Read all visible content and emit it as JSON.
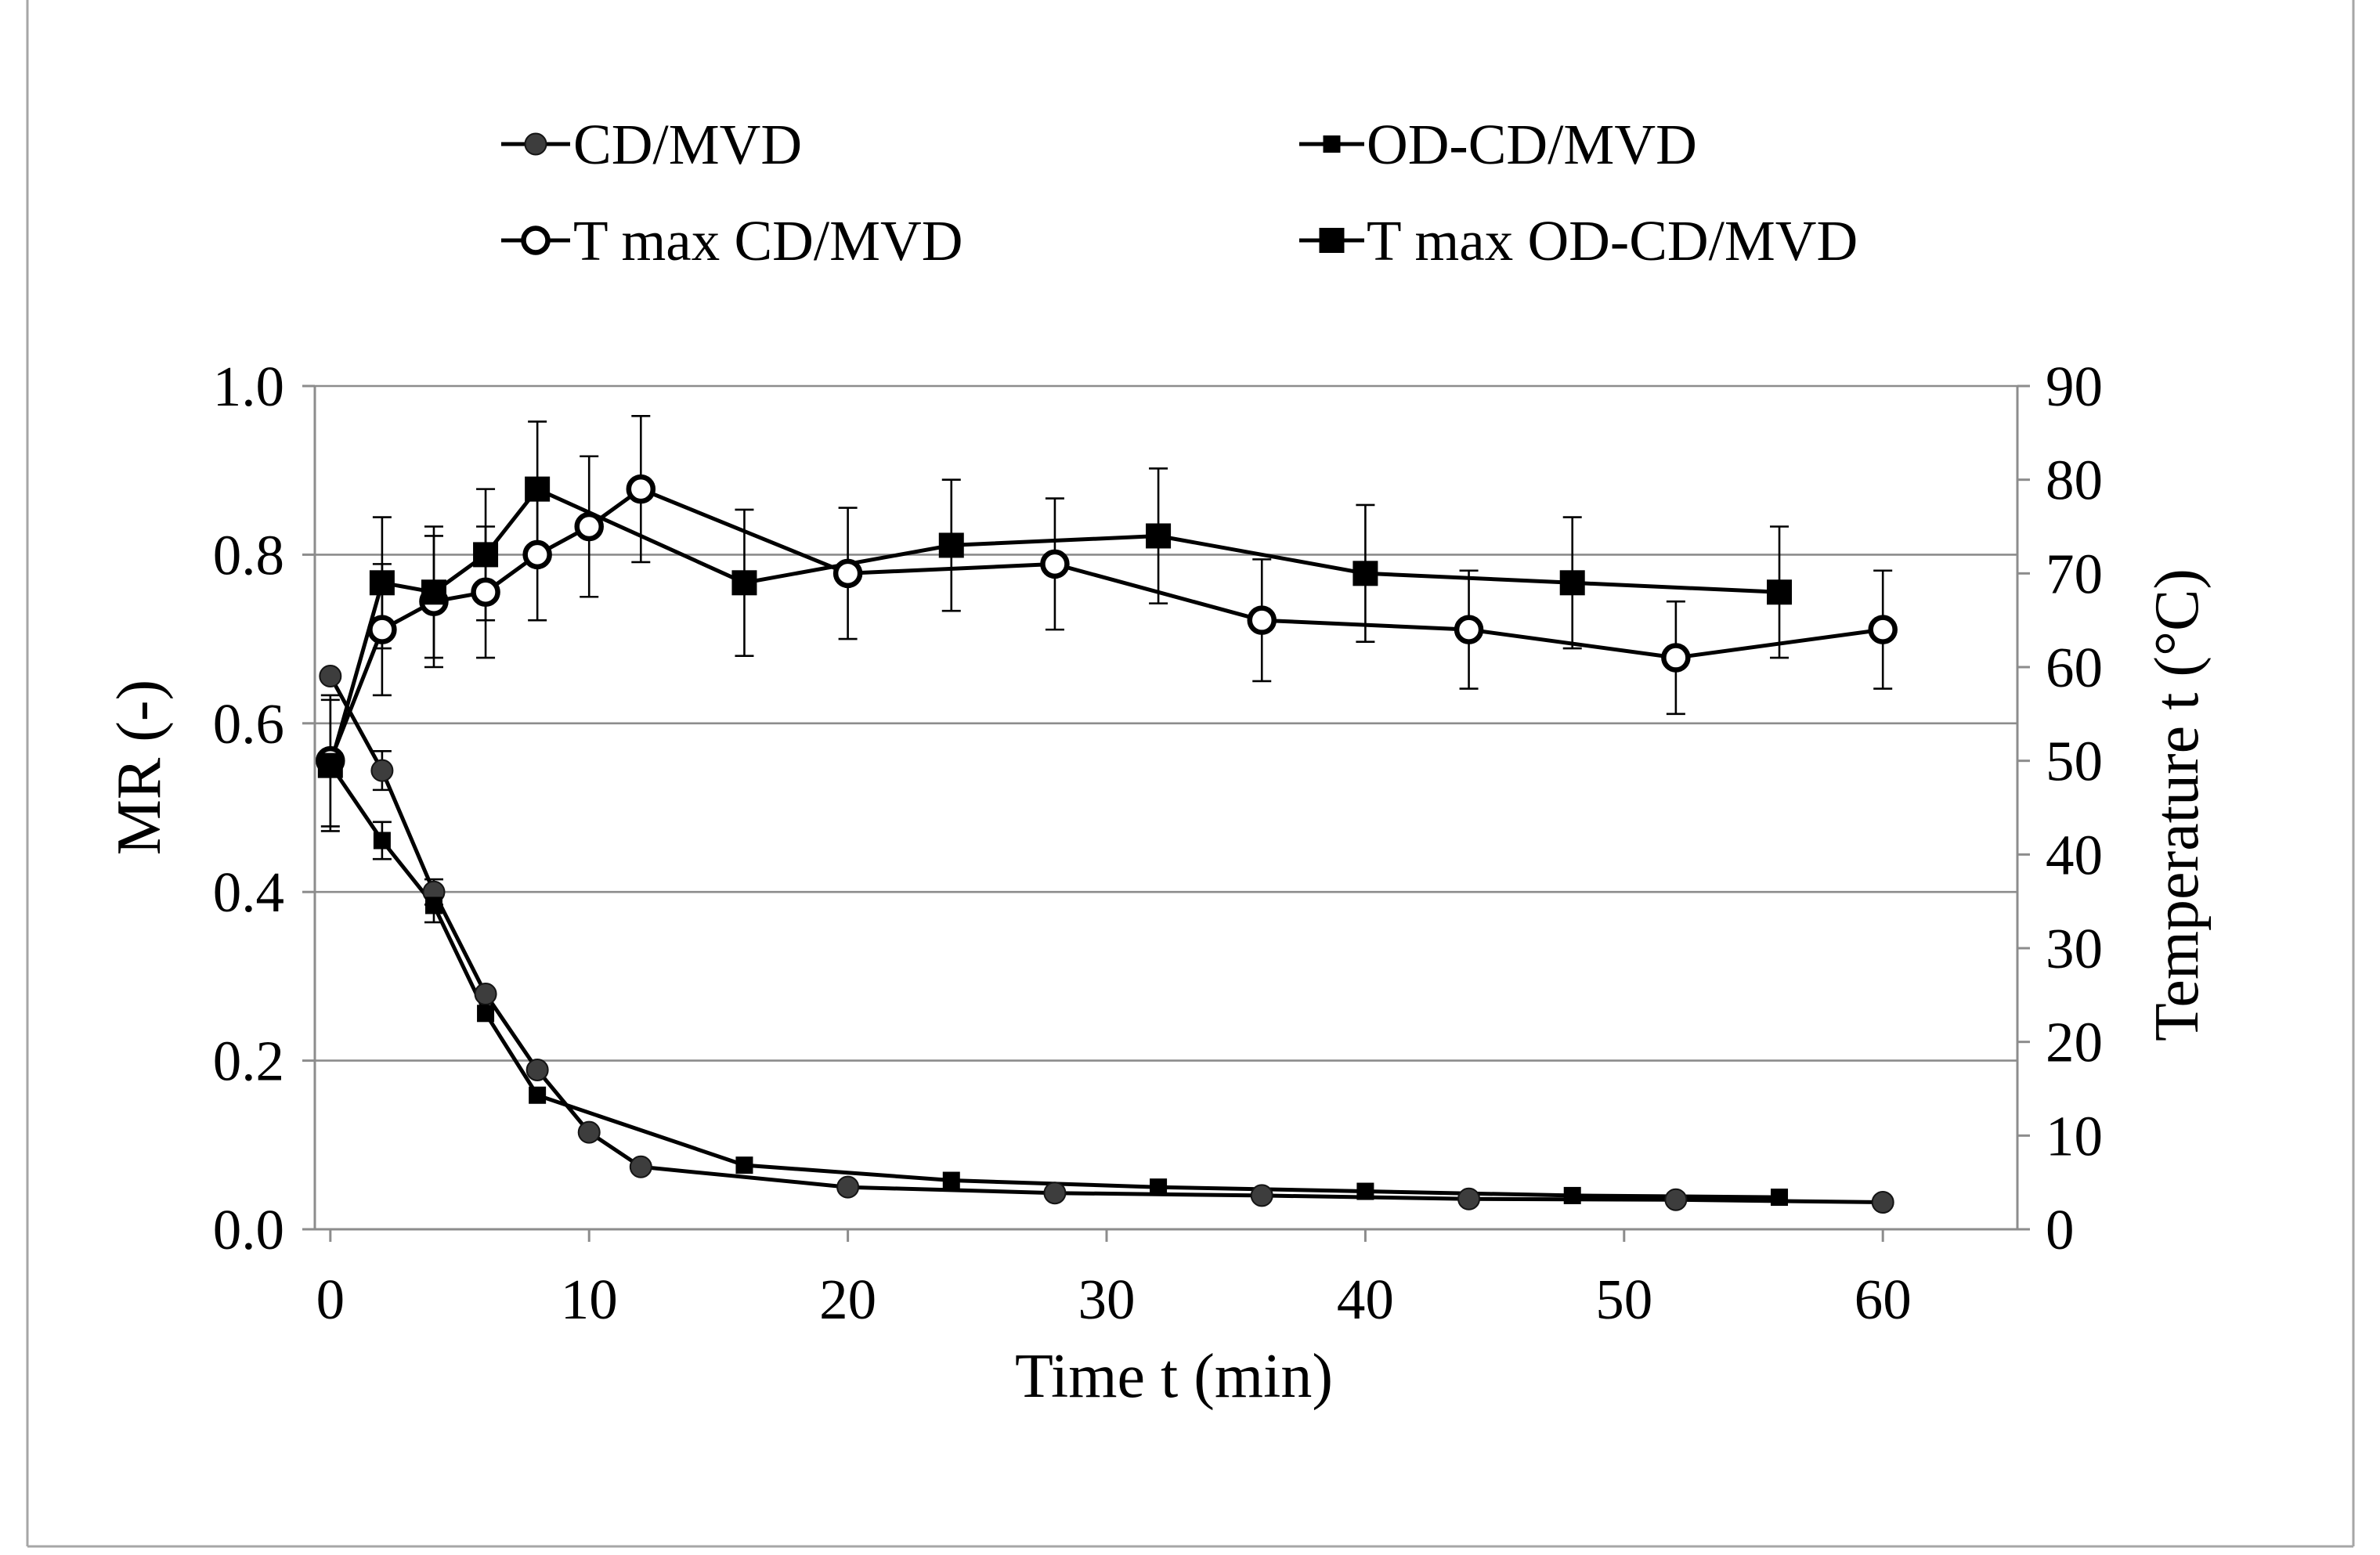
{
  "chart_data": {
    "type": "line",
    "title": "",
    "xlabel": "Time t (min)",
    "ylabel": "MR (-)",
    "y2label": "Temperature t (°C)",
    "xlim": [
      -0.6,
      65.2
    ],
    "ylim": [
      0,
      1
    ],
    "y2lim": [
      0,
      90
    ],
    "x_ticks": [
      0,
      10,
      20,
      30,
      40,
      50,
      60
    ],
    "x_tick_labels": [
      "0",
      "10",
      "20",
      "30",
      "40",
      "50",
      "60"
    ],
    "y_ticks": [
      0,
      0.2,
      0.4,
      0.6,
      0.8,
      1.0
    ],
    "y_tick_labels": [
      "0.0",
      "0.2",
      "0.4",
      "0.6",
      "0.8",
      "1.0"
    ],
    "y2_ticks": [
      0,
      10,
      20,
      30,
      40,
      50,
      60,
      70,
      80,
      90
    ],
    "y2_tick_labels": [
      "0",
      "10",
      "20",
      "30",
      "40",
      "50",
      "60",
      "70",
      "80",
      "90"
    ],
    "grid_horizontal": true,
    "grid_vertical": false,
    "legend_position": "top",
    "series": [
      {
        "name": "CD/MVD",
        "x": [
          0,
          2,
          4,
          6,
          8,
          10,
          12,
          20,
          28,
          36,
          44,
          52,
          60
        ],
        "y": [
          0.656,
          0.544,
          0.4,
          0.279,
          0.189,
          0.115,
          0.074,
          0.05,
          0.043,
          0.04,
          0.036,
          0.035,
          0.032
        ],
        "error": [
          0,
          0.023,
          0.015,
          0,
          0,
          0,
          0,
          0,
          0,
          0,
          0,
          0,
          0
        ]
      },
      {
        "name": "OD-CD/MVD",
        "x": [
          0,
          2,
          4,
          6,
          8,
          16,
          24,
          32,
          40,
          48,
          56
        ],
        "y": [
          0.551,
          0.461,
          0.384,
          0.256,
          0.159,
          0.076,
          0.058,
          0.05,
          0.045,
          0.04,
          0.038
        ],
        "error": [
          0,
          0.022,
          0.02,
          0,
          0,
          0,
          0,
          0,
          0,
          0,
          0
        ]
      }
    ],
    "series_y2": [
      {
        "name": "T max CD/MVD",
        "x": [
          0,
          2,
          4,
          6,
          8,
          10,
          12,
          20,
          28,
          36,
          44,
          52,
          60
        ],
        "y": [
          50,
          64,
          67,
          68,
          72,
          75,
          79,
          70,
          71,
          65,
          64,
          61,
          64
        ],
        "error": [
          7,
          7,
          7,
          7,
          7,
          7.5,
          7.8,
          7,
          7,
          6.5,
          6.3,
          6,
          6.3
        ]
      },
      {
        "name": "T max OD-CD/MVD",
        "x": [
          0,
          2,
          4,
          6,
          8,
          16,
          24,
          32,
          40,
          48,
          56
        ],
        "y": [
          49.5,
          69,
          68,
          72,
          79,
          69,
          73,
          74,
          70,
          69,
          68
        ],
        "error": [
          7,
          7,
          7,
          7,
          7.2,
          7.8,
          7,
          7.2,
          7.3,
          7,
          7
        ]
      }
    ]
  },
  "colors": {
    "line": "#000000",
    "cd_marker_fill": "#3d3d3d",
    "cd_marker_stroke": "#141414",
    "square_marker_fill": "#000000",
    "open_marker_fill": "#ffffff",
    "axis": "#8c8c8c",
    "grid": "#8c8c8c",
    "frame": "#a6a6a6",
    "background": "#ffffff"
  }
}
